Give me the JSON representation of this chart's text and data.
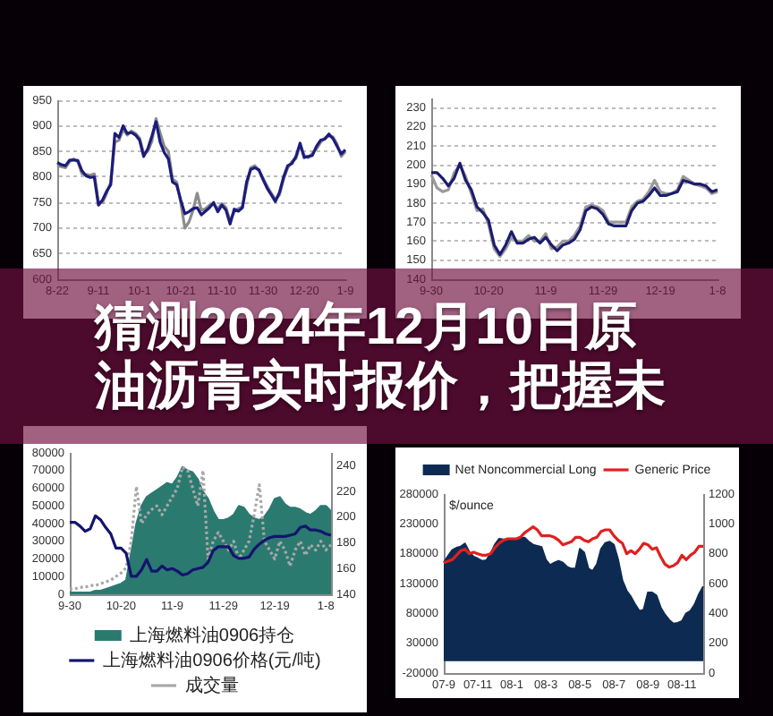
{
  "chart_data": [
    {
      "type": "line",
      "categories": [
        "8-22",
        null,
        null,
        null,
        null,
        null,
        null,
        null,
        null,
        null,
        "9-11",
        null,
        null,
        null,
        null,
        null,
        null,
        null,
        null,
        null,
        "10-1",
        null,
        null,
        null,
        null,
        null,
        null,
        null,
        null,
        null,
        "10-21",
        null,
        null,
        null,
        null,
        null,
        null,
        null,
        null,
        null,
        "11-10",
        null,
        null,
        null,
        null,
        null,
        null,
        null,
        null,
        null,
        "11-30",
        null,
        null,
        null,
        null,
        null,
        null,
        null,
        null,
        null,
        "12-20",
        null,
        null,
        null,
        null,
        null,
        null,
        null,
        null,
        null,
        "1-9"
      ],
      "series": [
        {
          "color": "#1c1c7c",
          "values": [
            828,
            824,
            822,
            833,
            833,
            832,
            812,
            802,
            799,
            800,
            745,
            755,
            772,
            785,
            885,
            877,
            900,
            885,
            887,
            882,
            872,
            840,
            855,
            880,
            908,
            868,
            848,
            835,
            790,
            785,
            755,
            728,
            732,
            738,
            740,
            726,
            733,
            740,
            750,
            732,
            745,
            735,
            708,
            737,
            733,
            740,
            790,
            815,
            818,
            814,
            795,
            778,
            765,
            752,
            770,
            800,
            822,
            826,
            840,
            866,
            838,
            840,
            842,
            860,
            872,
            874,
            884,
            875,
            860,
            845,
            853
          ]
        },
        {
          "color": "#8c8c8c",
          "values": [
            822,
            820,
            818,
            830,
            835,
            830,
            806,
            805,
            803,
            806,
            752,
            750,
            768,
            790,
            868,
            872,
            893,
            882,
            890,
            885,
            876,
            846,
            850,
            870,
            914,
            886,
            860,
            850,
            796,
            790,
            750,
            700,
            712,
            735,
            768,
            735,
            738,
            745,
            746,
            738,
            748,
            740,
            714,
            732,
            738,
            742,
            782,
            818,
            822,
            812,
            798,
            782,
            768,
            756,
            765,
            796,
            818,
            830,
            836,
            862,
            842,
            838,
            846,
            855,
            868,
            876,
            880,
            878,
            864,
            840,
            850
          ]
        }
      ],
      "ylim": [
        600,
        950
      ],
      "yticks": [
        600,
        650,
        700,
        750,
        800,
        850,
        900,
        950
      ],
      "grid": "y"
    },
    {
      "type": "line",
      "categories": [
        "9-30",
        null,
        null,
        null,
        null,
        null,
        null,
        null,
        null,
        null,
        "10-20",
        null,
        null,
        null,
        null,
        null,
        null,
        null,
        null,
        null,
        "11-9",
        null,
        null,
        null,
        null,
        null,
        null,
        null,
        null,
        null,
        "11-29",
        null,
        null,
        null,
        null,
        null,
        null,
        null,
        null,
        null,
        "12-19",
        null,
        null,
        null,
        null,
        null,
        null,
        null,
        null,
        null,
        "1-8"
      ],
      "series": [
        {
          "color": "#1c1c6e",
          "values": [
            196,
            196,
            193,
            189,
            193,
            201,
            192,
            187,
            178,
            175,
            171,
            158,
            153,
            158,
            165,
            159,
            159,
            161,
            162,
            159,
            162,
            158,
            155,
            158,
            159,
            161,
            166,
            176,
            178,
            177,
            174,
            169,
            168,
            168,
            168,
            176,
            180,
            181,
            184,
            188,
            184,
            184,
            185,
            186,
            192,
            191,
            190,
            190,
            189,
            186,
            187
          ]
        },
        {
          "color": "#9a9a9a",
          "values": [
            195,
            188,
            186,
            187,
            196,
            200,
            194,
            185,
            176,
            177,
            169,
            156,
            152,
            156,
            162,
            160,
            160,
            163,
            160,
            160,
            164,
            156,
            157,
            160,
            160,
            163,
            168,
            178,
            179,
            178,
            176,
            170,
            170,
            170,
            170,
            178,
            181,
            182,
            186,
            192,
            186,
            185,
            185,
            187,
            194,
            192,
            190,
            189,
            188,
            185,
            186
          ]
        }
      ],
      "ylim": [
        140,
        235
      ],
      "yticks": [
        140,
        150,
        160,
        170,
        180,
        190,
        200,
        210,
        220,
        230
      ],
      "grid": "y"
    },
    {
      "type": "other",
      "title": "猜测2024年12月10日原油沥青实时报价，把握未"
    },
    {
      "type": "area",
      "categories": [
        "9-30",
        null,
        null,
        null,
        null,
        null,
        null,
        null,
        null,
        null,
        "10-20",
        null,
        null,
        null,
        null,
        null,
        null,
        null,
        null,
        null,
        "11-9",
        null,
        null,
        null,
        null,
        null,
        null,
        null,
        null,
        null,
        "11-29",
        null,
        null,
        null,
        null,
        null,
        null,
        null,
        null,
        null,
        "12-19",
        null,
        null,
        null,
        null,
        null,
        null,
        null,
        null,
        null,
        "1-8",
        null
      ],
      "series": [
        {
          "name": "上海燃料油0906持仓",
          "color": "#2b7a70",
          "values": [
            1000,
            1000,
            1000,
            1000,
            1000,
            2000,
            2000,
            3000,
            4000,
            5000,
            6000,
            8000,
            24000,
            40000,
            50000,
            55000,
            57000,
            59000,
            61000,
            63000,
            62000,
            66000,
            72000,
            70000,
            69000,
            65000,
            58000,
            54000,
            47000,
            42000,
            42000,
            43000,
            45000,
            50000,
            49000,
            45000,
            43000,
            42000,
            44000,
            48000,
            54000,
            55000,
            51000,
            49000,
            49000,
            48000,
            46000,
            45000,
            47000,
            50000,
            50000,
            47000
          ]
        },
        {
          "name": "上海燃料油0906价格(元/吨)",
          "type": "line",
          "color": "#14146e",
          "axis": "y2",
          "values": [
            196,
            196,
            193,
            189,
            191,
            201,
            198,
            192,
            187,
            176,
            176,
            172,
            154,
            154,
            159,
            167,
            158,
            158,
            162,
            159,
            160,
            158,
            155,
            156,
            159,
            160,
            161,
            165,
            174,
            177,
            177,
            177,
            170,
            168,
            168,
            169,
            175,
            179,
            182,
            184,
            185,
            185,
            185,
            186,
            187,
            192,
            193,
            190,
            190,
            189,
            187,
            186
          ]
        },
        {
          "name": "成交量",
          "type": "line",
          "color": "#a8a8a8",
          "line_style": "dotted",
          "values": [
            3000,
            3000,
            4000,
            4000,
            5000,
            5000,
            6000,
            7000,
            8000,
            10000,
            12000,
            15000,
            30000,
            61000,
            40000,
            45000,
            48000,
            50000,
            45000,
            50000,
            55000,
            60000,
            72000,
            70000,
            60000,
            50000,
            70000,
            20000,
            30000,
            35000,
            30000,
            25000,
            30000,
            20000,
            25000,
            30000,
            45000,
            62000,
            30000,
            25000,
            20000,
            30000,
            25000,
            16000,
            25000,
            30000,
            22000,
            28000,
            25000,
            30000,
            25000,
            28000
          ]
        }
      ],
      "ylim": [
        0,
        80000
      ],
      "yticks": [
        0,
        10000,
        20000,
        30000,
        40000,
        50000,
        60000,
        70000,
        80000
      ],
      "y2lim": [
        140,
        250
      ],
      "y2ticks": [
        140,
        160,
        180,
        200,
        220,
        240
      ],
      "legend": "bottom"
    },
    {
      "type": "area",
      "categories": [
        "07-9",
        null,
        null,
        null,
        null,
        null,
        null,
        null,
        "07-11",
        null,
        null,
        null,
        null,
        null,
        null,
        null,
        "08-1",
        null,
        null,
        null,
        null,
        null,
        null,
        null,
        "08-3",
        null,
        null,
        null,
        null,
        null,
        null,
        null,
        "08-5",
        null,
        null,
        null,
        null,
        null,
        null,
        null,
        "08-7",
        null,
        null,
        null,
        null,
        null,
        null,
        null,
        "08-9",
        null,
        null,
        null,
        null,
        null,
        null,
        null,
        "08-11",
        null,
        null,
        null,
        null,
        null
      ],
      "series": [
        {
          "name": "Net Noncommercial Long",
          "color": "#0d2b52",
          "values": [
            165000,
            176000,
            186000,
            190000,
            192000,
            197000,
            183000,
            175000,
            172000,
            168000,
            169000,
            180000,
            195000,
            205000,
            204000,
            203000,
            203000,
            203000,
            206000,
            207000,
            200000,
            195000,
            193000,
            191000,
            170000,
            161000,
            165000,
            168000,
            165000,
            158000,
            155000,
            155000,
            188000,
            182000,
            155000,
            151000,
            162000,
            188000,
            198000,
            200000,
            195000,
            170000,
            135000,
            118000,
            108000,
            95000,
            84000,
            86000,
            115000,
            115000,
            110000,
            90000,
            78000,
            69000,
            63000,
            64000,
            67000,
            80000,
            84000,
            95000,
            112000,
            125000
          ]
        },
        {
          "name": "Generic Price",
          "type": "line",
          "color": "#e02020",
          "axis": "y2",
          "values": [
            740,
            750,
            760,
            790,
            820,
            830,
            800,
            810,
            800,
            790,
            790,
            800,
            840,
            870,
            890,
            900,
            900,
            900,
            910,
            940,
            960,
            980,
            960,
            920,
            920,
            920,
            910,
            890,
            860,
            870,
            880,
            910,
            910,
            890,
            880,
            900,
            910,
            950,
            960,
            960,
            920,
            890,
            870,
            800,
            820,
            800,
            830,
            870,
            860,
            830,
            840,
            780,
            730,
            710,
            720,
            740,
            790,
            760,
            790,
            810,
            850,
            850
          ]
        }
      ],
      "ylim": [
        -20000,
        280000
      ],
      "yticks": [
        -20000,
        30000,
        80000,
        130000,
        180000,
        230000,
        280000
      ],
      "y2lim": [
        0,
        1200
      ],
      "y2ticks": [
        0,
        200,
        400,
        600,
        800,
        1000,
        1200
      ],
      "legend": "top",
      "annotations": [
        "$/ounce"
      ]
    }
  ]
}
